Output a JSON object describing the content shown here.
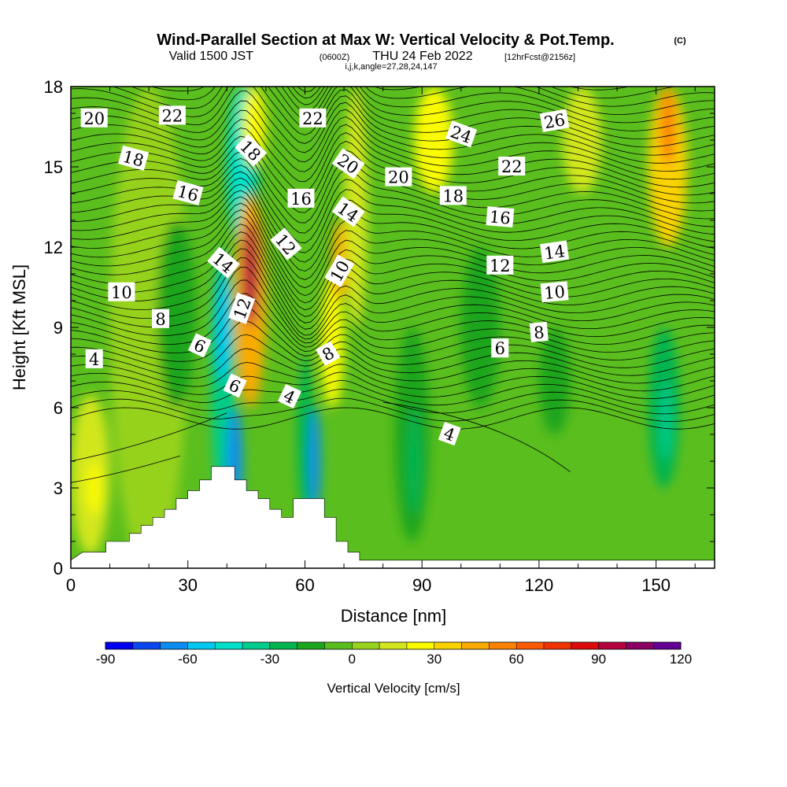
{
  "title": {
    "main": "Wind-Parallel Section at Max W: Vertical Velocity & Pot.Temp.",
    "copyright": "(C)",
    "valid_prefix": "Valid 1500 JST",
    "valid_utc": "(0600Z)",
    "valid_date": "THU 24 Feb 2022",
    "forecast": "[12hrFcst@2156z]",
    "indices": "i,j,k,angle=27,28,24,147"
  },
  "chart_data": {
    "type": "heatmap",
    "xlabel": "Distance [nm]",
    "ylabel": "Height [Kft MSL]",
    "xlim": [
      0,
      165
    ],
    "ylim": [
      0,
      18
    ],
    "x_ticks": [
      0,
      30,
      60,
      90,
      120,
      150
    ],
    "y_ticks": [
      0,
      3,
      6,
      9,
      12,
      15,
      18
    ],
    "colorbar": {
      "label": "Vertical Velocity [cm/s]",
      "min": -90,
      "max": 120,
      "step": 10,
      "tick_values": [
        -90,
        -60,
        -30,
        0,
        30,
        60,
        90,
        120
      ],
      "colors": [
        "#0000f0",
        "#0a46f0",
        "#0a8cf0",
        "#00c8f0",
        "#00e0c8",
        "#00cc8c",
        "#00b450",
        "#1ea51e",
        "#5abe1e",
        "#96d21e",
        "#d2e61e",
        "#fafa00",
        "#fad200",
        "#faaa00",
        "#fa8200",
        "#fa5a00",
        "#f03200",
        "#dc0a0a",
        "#b4003c",
        "#8c0064",
        "#640096"
      ]
    },
    "vertical_velocity_cells": [
      {
        "x": [
          0,
          10
        ],
        "y": [
          0.5,
          6.5
        ],
        "value": 15
      },
      {
        "x": [
          4,
          8
        ],
        "y": [
          2,
          4
        ],
        "value": 25
      },
      {
        "x": [
          10,
          30
        ],
        "y": [
          0,
          18
        ],
        "value": 0
      },
      {
        "x": [
          22,
          32
        ],
        "y": [
          6,
          13
        ],
        "value": -15
      },
      {
        "x": [
          36,
          42
        ],
        "y": [
          2,
          12
        ],
        "value": -35
      },
      {
        "x": [
          37,
          41
        ],
        "y": [
          7,
          11
        ],
        "value": -60
      },
      {
        "x": [
          40,
          44
        ],
        "y": [
          2,
          6
        ],
        "value": -70
      },
      {
        "x": [
          40,
          48
        ],
        "y": [
          12,
          18
        ],
        "value": -50
      },
      {
        "x": [
          42,
          50
        ],
        "y": [
          6,
          14
        ],
        "value": 40
      },
      {
        "x": [
          44,
          48
        ],
        "y": [
          9,
          13
        ],
        "value": 90
      },
      {
        "x": [
          44,
          50
        ],
        "y": [
          15,
          18
        ],
        "value": 25
      },
      {
        "x": [
          52,
          58
        ],
        "y": [
          6,
          16
        ],
        "value": -10
      },
      {
        "x": [
          58,
          62
        ],
        "y": [
          2,
          8
        ],
        "value": -25
      },
      {
        "x": [
          61,
          64
        ],
        "y": [
          2,
          6
        ],
        "value": -70
      },
      {
        "x": [
          64,
          70
        ],
        "y": [
          6,
          11
        ],
        "value": 25
      },
      {
        "x": [
          67,
          71
        ],
        "y": [
          10,
          13
        ],
        "value": 45
      },
      {
        "x": [
          70,
          76
        ],
        "y": [
          9,
          18
        ],
        "value": 10
      },
      {
        "x": [
          83,
          92
        ],
        "y": [
          1,
          9
        ],
        "value": -20
      },
      {
        "x": [
          86,
          90
        ],
        "y": [
          2,
          6
        ],
        "value": -30
      },
      {
        "x": [
          88,
          98
        ],
        "y": [
          14,
          18
        ],
        "value": 25
      },
      {
        "x": [
          100,
          110
        ],
        "y": [
          6,
          12
        ],
        "value": -15
      },
      {
        "x": [
          120,
          128
        ],
        "y": [
          5,
          9
        ],
        "value": -15
      },
      {
        "x": [
          126,
          136
        ],
        "y": [
          14,
          18
        ],
        "value": 10
      },
      {
        "x": [
          148,
          156
        ],
        "y": [
          3,
          9
        ],
        "value": -25
      },
      {
        "x": [
          151,
          154
        ],
        "y": [
          4,
          7
        ],
        "value": -35
      },
      {
        "x": [
          148,
          158
        ],
        "y": [
          12,
          18
        ],
        "value": 35
      },
      {
        "x": [
          151,
          155
        ],
        "y": [
          15,
          18
        ],
        "value": 55
      }
    ],
    "terrain": [
      [
        0,
        0.3
      ],
      [
        3,
        0.6
      ],
      [
        9,
        0.6
      ],
      [
        9,
        1.0
      ],
      [
        15,
        1.0
      ],
      [
        15,
        1.3
      ],
      [
        18,
        1.3
      ],
      [
        18,
        1.6
      ],
      [
        21,
        1.6
      ],
      [
        21,
        1.9
      ],
      [
        24,
        1.9
      ],
      [
        24,
        2.2
      ],
      [
        27,
        2.2
      ],
      [
        27,
        2.6
      ],
      [
        30,
        2.6
      ],
      [
        30,
        2.9
      ],
      [
        33,
        2.9
      ],
      [
        33,
        3.3
      ],
      [
        36,
        3.3
      ],
      [
        36,
        3.8
      ],
      [
        42,
        3.8
      ],
      [
        42,
        3.3
      ],
      [
        45,
        3.3
      ],
      [
        45,
        2.9
      ],
      [
        48,
        2.9
      ],
      [
        48,
        2.6
      ],
      [
        51,
        2.6
      ],
      [
        51,
        2.2
      ],
      [
        54,
        2.2
      ],
      [
        54,
        1.9
      ],
      [
        57,
        1.9
      ],
      [
        57,
        2.6
      ],
      [
        65,
        2.6
      ],
      [
        65,
        1.9
      ],
      [
        68,
        1.9
      ],
      [
        68,
        1.0
      ],
      [
        71,
        1.0
      ],
      [
        71,
        0.6
      ],
      [
        74,
        0.6
      ],
      [
        74,
        0.3
      ],
      [
        165,
        0.3
      ]
    ],
    "contour_labels": [
      {
        "text": "20",
        "x": 6,
        "y": 16.8,
        "angle": 0
      },
      {
        "text": "22",
        "x": 26,
        "y": 16.9,
        "angle": 0
      },
      {
        "text": "22",
        "x": 62,
        "y": 16.8,
        "angle": 0
      },
      {
        "text": "26",
        "x": 124,
        "y": 16.7,
        "angle": -10
      },
      {
        "text": "24",
        "x": 100,
        "y": 16.2,
        "angle": 20
      },
      {
        "text": "18",
        "x": 16,
        "y": 15.3,
        "angle": 15
      },
      {
        "text": "18",
        "x": 46,
        "y": 15.6,
        "angle": 45
      },
      {
        "text": "20",
        "x": 71,
        "y": 15.1,
        "angle": 35
      },
      {
        "text": "20",
        "x": 84,
        "y": 14.6,
        "angle": 0
      },
      {
        "text": "22",
        "x": 113,
        "y": 15.0,
        "angle": 0
      },
      {
        "text": "16",
        "x": 30,
        "y": 14.0,
        "angle": 15
      },
      {
        "text": "16",
        "x": 59,
        "y": 13.8,
        "angle": 0
      },
      {
        "text": "14",
        "x": 71,
        "y": 13.3,
        "angle": 35
      },
      {
        "text": "18",
        "x": 98,
        "y": 13.9,
        "angle": 0
      },
      {
        "text": "16",
        "x": 110,
        "y": 13.1,
        "angle": 5
      },
      {
        "text": "12",
        "x": 55,
        "y": 12.1,
        "angle": 50
      },
      {
        "text": "14",
        "x": 124,
        "y": 11.8,
        "angle": -8
      },
      {
        "text": "14",
        "x": 39,
        "y": 11.4,
        "angle": 40
      },
      {
        "text": "10",
        "x": 69,
        "y": 11.1,
        "angle": -60
      },
      {
        "text": "12",
        "x": 110,
        "y": 11.3,
        "angle": 0
      },
      {
        "text": "10",
        "x": 13,
        "y": 10.3,
        "angle": 0
      },
      {
        "text": "10",
        "x": 124,
        "y": 10.3,
        "angle": -5
      },
      {
        "text": "12",
        "x": 44,
        "y": 9.7,
        "angle": -70
      },
      {
        "text": "8",
        "x": 23,
        "y": 9.3,
        "angle": 0
      },
      {
        "text": "8",
        "x": 120,
        "y": 8.8,
        "angle": -5
      },
      {
        "text": "6",
        "x": 33,
        "y": 8.3,
        "angle": 25
      },
      {
        "text": "6",
        "x": 110,
        "y": 8.2,
        "angle": 0
      },
      {
        "text": "8",
        "x": 66,
        "y": 8.0,
        "angle": -30
      },
      {
        "text": "4",
        "x": 6,
        "y": 7.8,
        "angle": 0
      },
      {
        "text": "6",
        "x": 42,
        "y": 6.8,
        "angle": 25
      },
      {
        "text": "4",
        "x": 56,
        "y": 6.4,
        "angle": 25
      },
      {
        "text": "4",
        "x": 97,
        "y": 5.0,
        "angle": 20
      }
    ]
  }
}
